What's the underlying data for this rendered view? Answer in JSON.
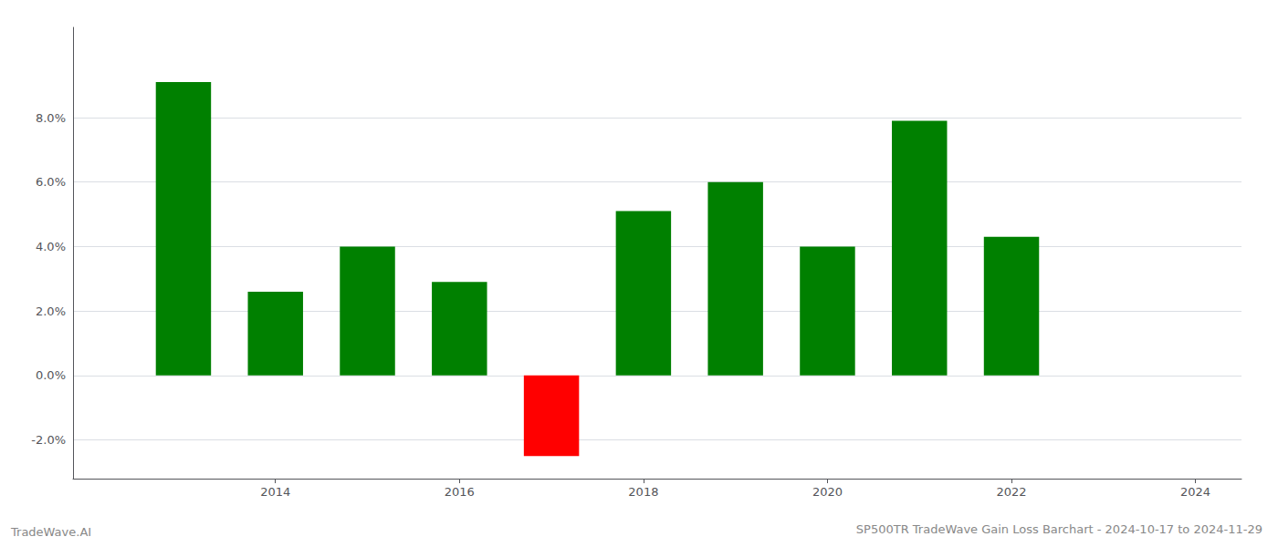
{
  "chart_data": {
    "type": "bar",
    "title": "SP500TR TradeWave Gain Loss Barchart - 2024-10-17 to 2024-11-29",
    "annotations": [
      "TradeWave.AI"
    ],
    "x": [
      2013,
      2014,
      2015,
      2016,
      2017,
      2018,
      2019,
      2020,
      2021,
      2022
    ],
    "values": [
      0.091,
      0.026,
      0.04,
      0.029,
      -0.025,
      0.051,
      0.06,
      0.04,
      0.079,
      0.043
    ],
    "colors": [
      "#008000",
      "#008000",
      "#008000",
      "#008000",
      "#ff0000",
      "#008000",
      "#008000",
      "#008000",
      "#008000",
      "#008000"
    ],
    "xlim": [
      2011.8,
      2024.5
    ],
    "xticks": [
      2014,
      2016,
      2018,
      2020,
      2022,
      2024
    ],
    "ylim": [
      -0.032,
      0.108
    ],
    "yticks": [
      {
        "value": -0.02,
        "label": "-2.0%"
      },
      {
        "value": 0.0,
        "label": "0.0%"
      },
      {
        "value": 0.02,
        "label": "2.0%"
      },
      {
        "value": 0.04,
        "label": "4.0%"
      },
      {
        "value": 0.06,
        "label": "6.0%"
      },
      {
        "value": 0.08,
        "label": "8.0%"
      }
    ],
    "grid": true
  }
}
